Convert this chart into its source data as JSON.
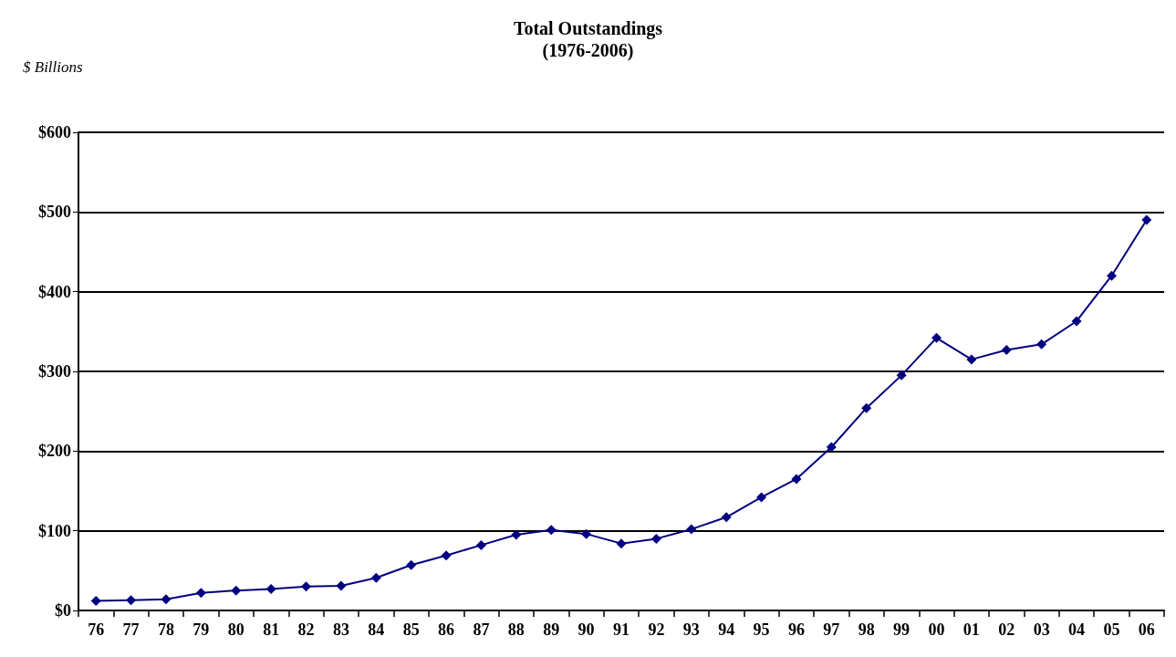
{
  "chart_data": {
    "type": "line",
    "title": "Total Outstandings",
    "subtitle": "(1976-2006)",
    "ylabel": "$ Billions",
    "categories": [
      "76",
      "77",
      "78",
      "79",
      "80",
      "81",
      "82",
      "83",
      "84",
      "85",
      "86",
      "87",
      "88",
      "89",
      "90",
      "91",
      "92",
      "93",
      "94",
      "95",
      "96",
      "97",
      "98",
      "99",
      "00",
      "01",
      "02",
      "03",
      "04",
      "05",
      "06"
    ],
    "series": [
      {
        "color": "#000080",
        "values": [
          12,
          13,
          14,
          22,
          25,
          27,
          30,
          31,
          41,
          57,
          69,
          82,
          95,
          101,
          96,
          84,
          90,
          102,
          117,
          142,
          165,
          205,
          254,
          295,
          342,
          315,
          327,
          334,
          363,
          420,
          490
        ]
      }
    ],
    "ylim": [
      0,
      600
    ],
    "yticks": [
      {
        "value": 0,
        "label": "$0"
      },
      {
        "value": 100,
        "label": "$100"
      },
      {
        "value": 200,
        "label": "$200"
      },
      {
        "value": 300,
        "label": "$300"
      },
      {
        "value": 400,
        "label": "$400"
      },
      {
        "value": 500,
        "label": "$500"
      },
      {
        "value": 600,
        "label": "$600"
      }
    ],
    "grid": "y",
    "marker": "diamond",
    "line_style": "solid"
  }
}
